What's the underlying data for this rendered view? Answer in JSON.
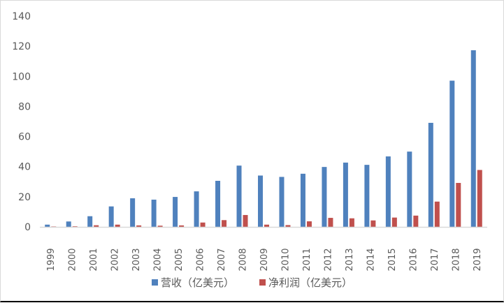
{
  "chart_data": {
    "type": "bar",
    "title": "",
    "xlabel": "",
    "ylabel": "",
    "ylim": [
      0,
      140
    ],
    "yticks": [
      0,
      20,
      40,
      60,
      80,
      100,
      120,
      140
    ],
    "grid": false,
    "legend_position": "bottom",
    "categories": [
      "1999",
      "2000",
      "2001",
      "2002",
      "2003",
      "2004",
      "2005",
      "2006",
      "2007",
      "2008",
      "2009",
      "2010",
      "2011",
      "2012",
      "2013",
      "2014",
      "2015",
      "2016",
      "2017",
      "2018",
      "2019"
    ],
    "series": [
      {
        "name": "营收（亿美元）",
        "color": "#4f81bd",
        "values": [
          1.5,
          3.6,
          7.1,
          13.6,
          19.0,
          18.1,
          19.9,
          23.6,
          30.6,
          40.7,
          34.1,
          33.2,
          35.3,
          39.8,
          42.7,
          41.2,
          46.8,
          50.0,
          69.1,
          97.1,
          117.3
        ]
      },
      {
        "name": "净利润（亿美元）",
        "color": "#c0504d",
        "values": [
          0.2,
          0.4,
          1.1,
          1.5,
          1.0,
          0.8,
          1.0,
          2.9,
          4.5,
          7.9,
          1.5,
          1.2,
          3.7,
          6.0,
          5.7,
          4.3,
          6.2,
          7.5,
          16.8,
          29.2,
          37.8
        ]
      }
    ]
  },
  "legend": {
    "items": [
      {
        "label": "营收（亿美元）",
        "color": "#4f81bd"
      },
      {
        "label": "净利润（亿美元）",
        "color": "#c0504d"
      }
    ]
  }
}
